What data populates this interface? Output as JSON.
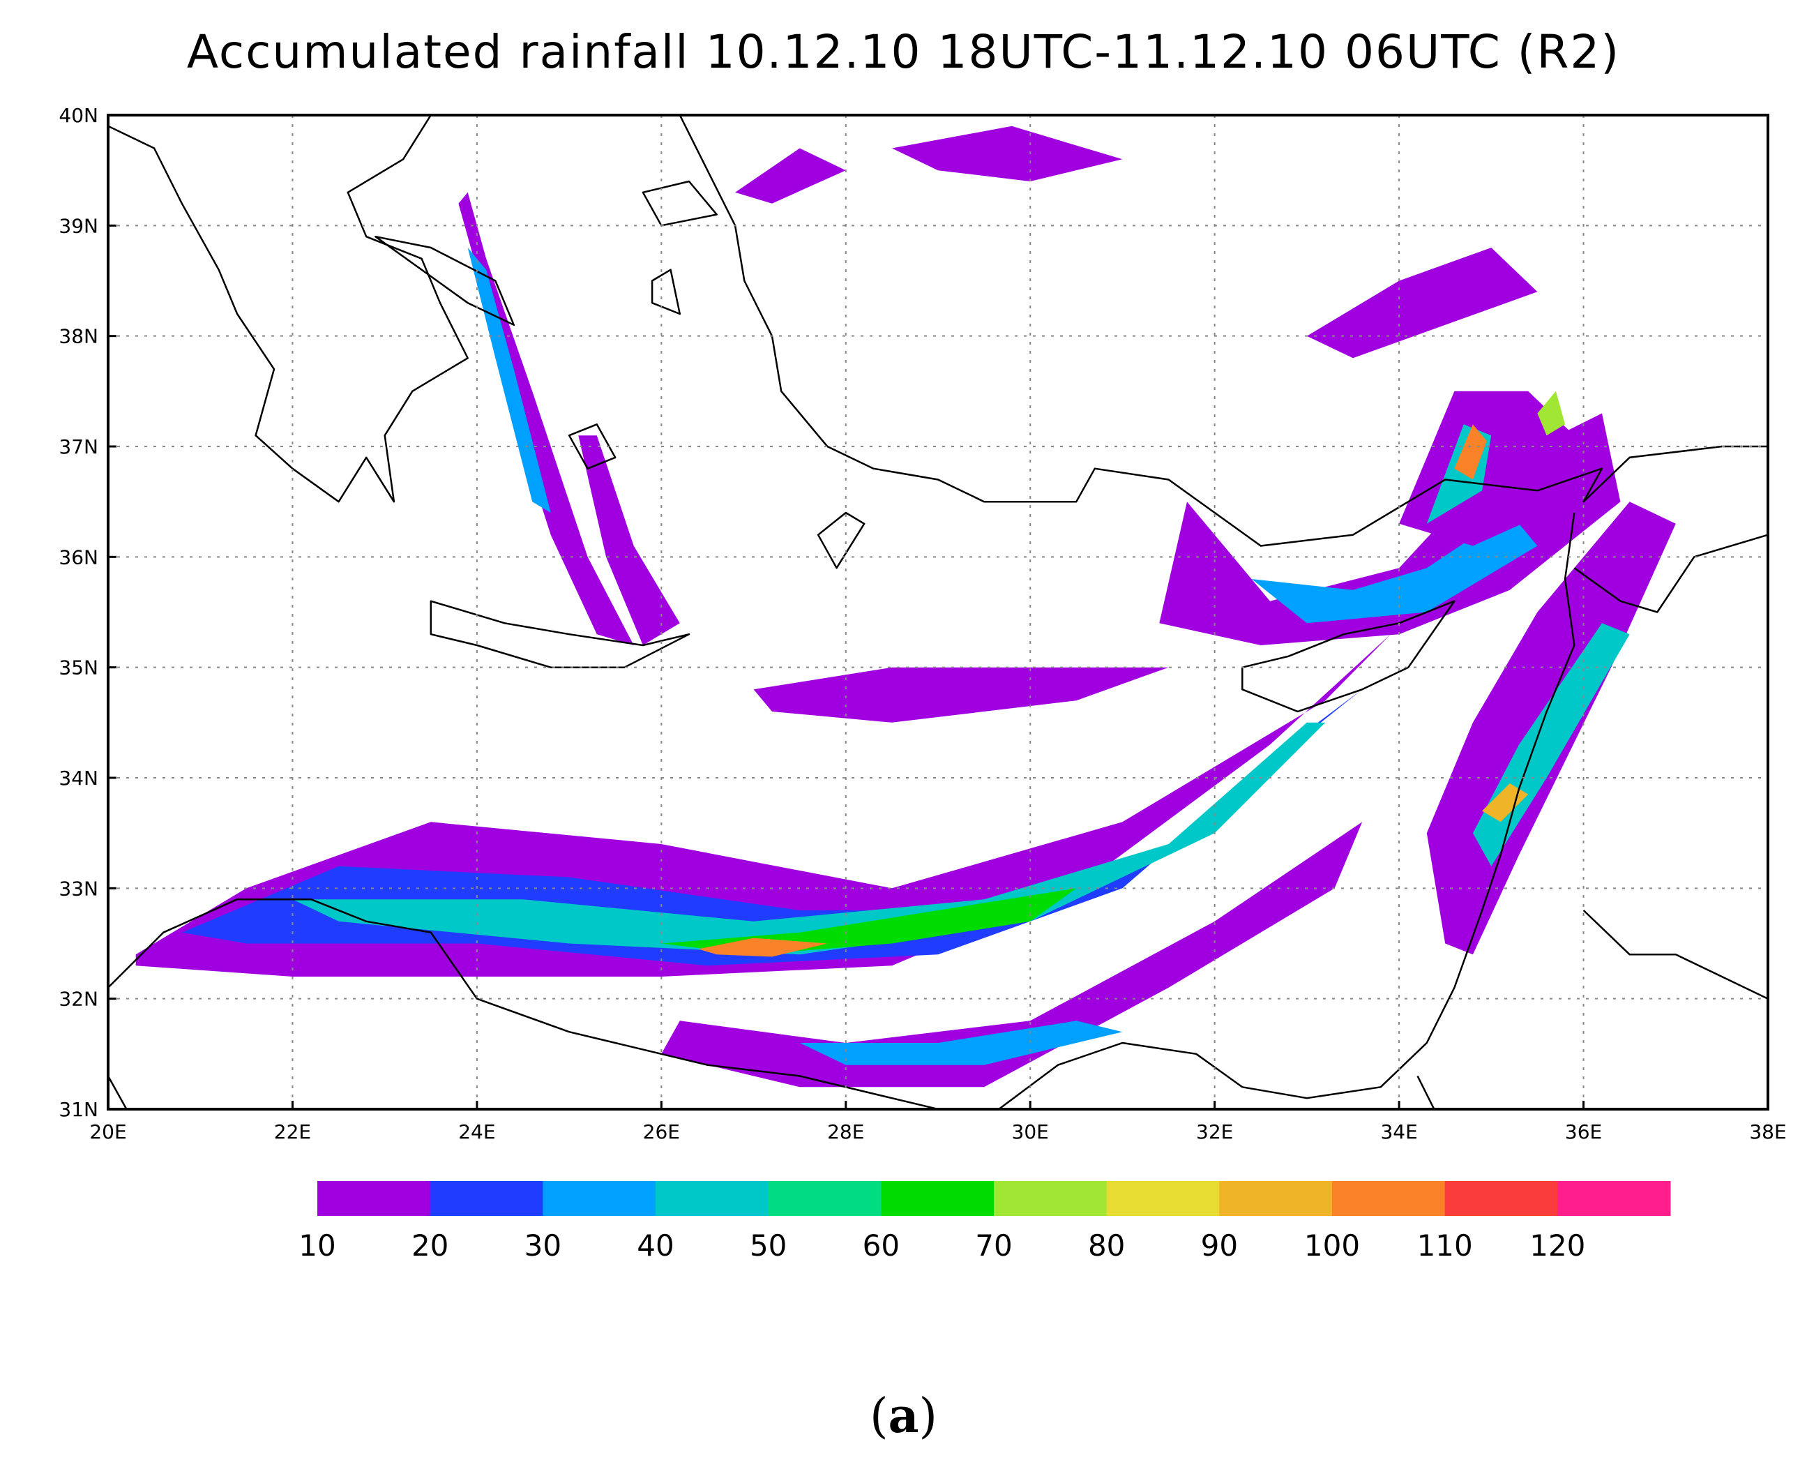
{
  "title": "Accumulated rainfall 10.12.10 18UTC-11.12.10 06UTC (R2)",
  "caption": {
    "open": "(",
    "letter": "a",
    "close": ")"
  },
  "map": {
    "lon_range": [
      20,
      38
    ],
    "lat_range": [
      31,
      40
    ],
    "lon_ticks": [
      "20E",
      "22E",
      "24E",
      "26E",
      "28E",
      "30E",
      "32E",
      "34E",
      "36E",
      "38E"
    ],
    "lat_ticks": [
      "31N",
      "32N",
      "33N",
      "34N",
      "35N",
      "36N",
      "37N",
      "38N",
      "39N",
      "40N"
    ],
    "grid": "dotted"
  },
  "colorbar": {
    "colors": [
      "#a000e0",
      "#1f3cff",
      "#00a0ff",
      "#00c8c8",
      "#00dc82",
      "#00dc00",
      "#a0e632",
      "#e6dc32",
      "#f0b428",
      "#fa8228",
      "#fa3c3c",
      "#ff1e8c"
    ],
    "labels": [
      "10",
      "20",
      "30",
      "40",
      "50",
      "60",
      "70",
      "80",
      "90",
      "100",
      "110",
      "120"
    ]
  },
  "rain_bands": [
    {
      "name": "libya-sea-band",
      "level": 10,
      "points": [
        [
          20.3,
          32.4
        ],
        [
          21.5,
          33.0
        ],
        [
          23.5,
          33.6
        ],
        [
          26.0,
          33.4
        ],
        [
          28.5,
          33.0
        ],
        [
          31.0,
          33.6
        ],
        [
          33.2,
          34.7
        ],
        [
          34.5,
          35.8
        ],
        [
          34.3,
          35.6
        ],
        [
          32.6,
          34.3
        ],
        [
          30.5,
          33.0
        ],
        [
          28.5,
          32.3
        ],
        [
          26.0,
          32.2
        ],
        [
          24.0,
          32.2
        ],
        [
          22.0,
          32.2
        ],
        [
          20.3,
          32.3
        ]
      ]
    },
    {
      "name": "libya-sea-band",
      "level": 20,
      "points": [
        [
          20.8,
          32.6
        ],
        [
          22.5,
          33.2
        ],
        [
          25.0,
          33.1
        ],
        [
          27.5,
          32.8
        ],
        [
          29.5,
          32.8
        ],
        [
          31.5,
          33.3
        ],
        [
          33.0,
          34.4
        ],
        [
          33.6,
          34.8
        ],
        [
          32.8,
          34.3
        ],
        [
          31.0,
          33.0
        ],
        [
          29.0,
          32.4
        ],
        [
          26.5,
          32.3
        ],
        [
          24.0,
          32.5
        ],
        [
          21.5,
          32.5
        ]
      ]
    },
    {
      "name": "libya-sea-band",
      "level": 40,
      "points": [
        [
          22.0,
          32.9
        ],
        [
          24.5,
          32.9
        ],
        [
          27.0,
          32.7
        ],
        [
          29.5,
          32.9
        ],
        [
          31.5,
          33.4
        ],
        [
          33.0,
          34.5
        ],
        [
          33.2,
          34.5
        ],
        [
          32.0,
          33.5
        ],
        [
          30.0,
          32.7
        ],
        [
          27.5,
          32.4
        ],
        [
          25.0,
          32.5
        ],
        [
          22.5,
          32.7
        ]
      ]
    },
    {
      "name": "libya-sea-band",
      "level": 60,
      "points": [
        [
          26.0,
          32.5
        ],
        [
          27.5,
          32.6
        ],
        [
          29.0,
          32.8
        ],
        [
          30.5,
          33.0
        ],
        [
          30.0,
          32.7
        ],
        [
          28.5,
          32.5
        ],
        [
          27.0,
          32.4
        ]
      ]
    },
    {
      "name": "libya-sea-max",
      "level": 100,
      "points": [
        [
          26.4,
          32.45
        ],
        [
          27.0,
          32.55
        ],
        [
          27.8,
          32.5
        ],
        [
          27.2,
          32.38
        ],
        [
          26.6,
          32.4
        ]
      ]
    },
    {
      "name": "cyprus-band",
      "level": 10,
      "points": [
        [
          31.7,
          36.5
        ],
        [
          32.6,
          35.6
        ],
        [
          34.0,
          35.9
        ],
        [
          35.0,
          36.8
        ],
        [
          36.2,
          37.3
        ],
        [
          36.4,
          36.5
        ],
        [
          35.2,
          35.7
        ],
        [
          34.0,
          35.3
        ],
        [
          32.5,
          35.2
        ],
        [
          31.4,
          35.4
        ]
      ]
    },
    {
      "name": "cyprus-band",
      "level": 30,
      "points": [
        [
          32.4,
          35.8
        ],
        [
          33.5,
          35.7
        ],
        [
          34.3,
          35.9
        ],
        [
          35.2,
          36.4
        ],
        [
          35.5,
          36.1
        ],
        [
          34.3,
          35.5
        ],
        [
          33.0,
          35.4
        ]
      ]
    },
    {
      "name": "turkey-cell",
      "level": 10,
      "points": [
        [
          34.0,
          36.3
        ],
        [
          34.6,
          37.5
        ],
        [
          35.4,
          37.5
        ],
        [
          35.9,
          37.1
        ],
        [
          35.6,
          36.4
        ],
        [
          34.8,
          36.1
        ]
      ]
    },
    {
      "name": "turkey-cell",
      "level": 40,
      "points": [
        [
          34.3,
          36.3
        ],
        [
          34.7,
          37.2
        ],
        [
          35.0,
          37.1
        ],
        [
          34.9,
          36.6
        ]
      ]
    },
    {
      "name": "turkey-cell-max",
      "level": 100,
      "points": [
        [
          34.6,
          36.8
        ],
        [
          34.8,
          37.2
        ],
        [
          34.95,
          37.05
        ],
        [
          34.8,
          36.7
        ]
      ]
    },
    {
      "name": "turkey-cell-east",
      "level": 70,
      "points": [
        [
          35.5,
          37.3
        ],
        [
          35.7,
          37.5
        ],
        [
          35.8,
          37.2
        ],
        [
          35.6,
          37.1
        ]
      ]
    },
    {
      "name": "levant-band",
      "level": 10,
      "points": [
        [
          34.3,
          33.5
        ],
        [
          34.8,
          34.5
        ],
        [
          35.5,
          35.5
        ],
        [
          36.5,
          36.5
        ],
        [
          37.0,
          36.3
        ],
        [
          36.3,
          35.0
        ],
        [
          35.3,
          33.3
        ],
        [
          34.8,
          32.4
        ],
        [
          34.5,
          32.5
        ]
      ]
    },
    {
      "name": "levant-band",
      "level": 40,
      "points": [
        [
          34.8,
          33.5
        ],
        [
          35.3,
          34.3
        ],
        [
          36.2,
          35.4
        ],
        [
          36.5,
          35.3
        ],
        [
          35.6,
          34.0
        ],
        [
          35.0,
          33.2
        ]
      ]
    },
    {
      "name": "levant-band-max",
      "level": 90,
      "points": [
        [
          34.9,
          33.7
        ],
        [
          35.2,
          33.95
        ],
        [
          35.4,
          33.85
        ],
        [
          35.1,
          33.6
        ]
      ]
    },
    {
      "name": "aegean-band",
      "level": 10,
      "points": [
        [
          23.8,
          39.2
        ],
        [
          24.0,
          38.6
        ],
        [
          24.3,
          37.5
        ],
        [
          24.8,
          36.2
        ],
        [
          25.3,
          35.3
        ],
        [
          25.7,
          35.2
        ],
        [
          25.2,
          36.0
        ],
        [
          24.6,
          37.5
        ],
        [
          24.1,
          38.7
        ],
        [
          23.9,
          39.3
        ]
      ]
    },
    {
      "name": "aegean-band",
      "level": 30,
      "points": [
        [
          23.9,
          38.8
        ],
        [
          24.2,
          37.8
        ],
        [
          24.6,
          36.5
        ],
        [
          24.8,
          36.4
        ],
        [
          24.4,
          37.7
        ],
        [
          24.1,
          38.6
        ]
      ]
    },
    {
      "name": "crete-band",
      "level": 10,
      "points": [
        [
          25.1,
          37.1
        ],
        [
          25.4,
          36.0
        ],
        [
          25.8,
          35.2
        ],
        [
          26.2,
          35.4
        ],
        [
          25.7,
          36.1
        ],
        [
          25.3,
          37.1
        ]
      ]
    },
    {
      "name": "south-band",
      "level": 10,
      "points": [
        [
          26.2,
          31.8
        ],
        [
          28.0,
          31.6
        ],
        [
          30.0,
          31.8
        ],
        [
          32.0,
          32.7
        ],
        [
          33.6,
          33.6
        ],
        [
          33.3,
          33.0
        ],
        [
          31.5,
          32.1
        ],
        [
          29.5,
          31.2
        ],
        [
          27.5,
          31.2
        ],
        [
          26.0,
          31.5
        ]
      ]
    },
    {
      "name": "south-band",
      "level": 30,
      "points": [
        [
          27.5,
          31.6
        ],
        [
          29.0,
          31.6
        ],
        [
          30.5,
          31.8
        ],
        [
          31.0,
          31.7
        ],
        [
          29.5,
          31.4
        ],
        [
          28.0,
          31.4
        ]
      ]
    },
    {
      "name": "central-cell",
      "level": 10,
      "points": [
        [
          27.0,
          34.8
        ],
        [
          28.5,
          35.0
        ],
        [
          30.0,
          35.0
        ],
        [
          31.5,
          35.0
        ],
        [
          30.5,
          34.7
        ],
        [
          28.5,
          34.5
        ],
        [
          27.2,
          34.6
        ]
      ]
    },
    {
      "name": "north-aegean-band",
      "level": 10,
      "points": [
        [
          33.0,
          38.0
        ],
        [
          34.0,
          38.5
        ],
        [
          35.0,
          38.8
        ],
        [
          35.5,
          38.4
        ],
        [
          34.5,
          38.1
        ],
        [
          33.5,
          37.8
        ]
      ]
    },
    {
      "name": "north-aegean-band",
      "level": 10,
      "points": [
        [
          28.5,
          39.7
        ],
        [
          29.8,
          39.9
        ],
        [
          31.0,
          39.6
        ],
        [
          30.0,
          39.4
        ],
        [
          29.0,
          39.5
        ]
      ]
    },
    {
      "name": "north-aegean-band",
      "level": 10,
      "points": [
        [
          26.8,
          39.3
        ],
        [
          27.5,
          39.7
        ],
        [
          28.0,
          39.5
        ],
        [
          27.2,
          39.2
        ]
      ]
    }
  ],
  "coastlines": [
    {
      "name": "greece-coast",
      "points": [
        [
          20.0,
          39.9
        ],
        [
          20.5,
          39.7
        ],
        [
          20.8,
          39.2
        ],
        [
          21.2,
          38.6
        ],
        [
          21.4,
          38.2
        ],
        [
          21.8,
          37.7
        ],
        [
          21.6,
          37.1
        ],
        [
          22.0,
          36.8
        ],
        [
          22.5,
          36.5
        ],
        [
          22.8,
          36.9
        ],
        [
          23.1,
          36.5
        ],
        [
          23.0,
          37.1
        ],
        [
          23.3,
          37.5
        ],
        [
          23.9,
          37.8
        ],
        [
          23.6,
          38.3
        ],
        [
          23.4,
          38.7
        ],
        [
          22.8,
          38.9
        ],
        [
          22.6,
          39.3
        ],
        [
          23.2,
          39.6
        ],
        [
          23.5,
          40.0
        ]
      ]
    },
    {
      "name": "crete-coast",
      "points": [
        [
          23.5,
          35.6
        ],
        [
          24.3,
          35.4
        ],
        [
          25.0,
          35.3
        ],
        [
          25.8,
          35.2
        ],
        [
          26.3,
          35.3
        ],
        [
          25.6,
          35.0
        ],
        [
          24.8,
          35.0
        ],
        [
          24.0,
          35.2
        ],
        [
          23.5,
          35.3
        ],
        [
          23.5,
          35.6
        ]
      ]
    },
    {
      "name": "turkey-coast",
      "points": [
        [
          26.2,
          40.0
        ],
        [
          26.5,
          39.5
        ],
        [
          26.8,
          39.0
        ],
        [
          26.9,
          38.5
        ],
        [
          27.2,
          38.0
        ],
        [
          27.3,
          37.5
        ],
        [
          27.8,
          37.0
        ],
        [
          28.3,
          36.8
        ],
        [
          29.0,
          36.7
        ],
        [
          29.5,
          36.5
        ],
        [
          30.5,
          36.5
        ],
        [
          30.7,
          36.8
        ],
        [
          31.5,
          36.7
        ],
        [
          32.5,
          36.1
        ],
        [
          33.5,
          36.2
        ],
        [
          34.5,
          36.7
        ],
        [
          35.5,
          36.6
        ],
        [
          36.2,
          36.8
        ],
        [
          36.0,
          36.5
        ],
        [
          36.5,
          36.9
        ],
        [
          37.5,
          37.0
        ],
        [
          38.0,
          37.0
        ]
      ]
    },
    {
      "name": "cyprus-coast",
      "points": [
        [
          32.3,
          34.8
        ],
        [
          32.9,
          34.6
        ],
        [
          33.6,
          34.8
        ],
        [
          34.1,
          35.0
        ],
        [
          34.6,
          35.6
        ],
        [
          34.0,
          35.4
        ],
        [
          33.4,
          35.3
        ],
        [
          32.8,
          35.1
        ],
        [
          32.3,
          35.0
        ],
        [
          32.3,
          34.8
        ]
      ]
    },
    {
      "name": "levant-coast",
      "points": [
        [
          35.9,
          36.4
        ],
        [
          35.8,
          35.8
        ],
        [
          35.9,
          35.2
        ],
        [
          35.6,
          34.6
        ],
        [
          35.3,
          33.9
        ],
        [
          35.1,
          33.3
        ],
        [
          34.9,
          32.8
        ],
        [
          34.6,
          32.1
        ],
        [
          34.3,
          31.6
        ],
        [
          33.8,
          31.2
        ],
        [
          33.0,
          31.1
        ],
        [
          32.3,
          31.2
        ]
      ]
    },
    {
      "name": "africa-coast",
      "points": [
        [
          20.0,
          32.1
        ],
        [
          20.6,
          32.6
        ],
        [
          21.4,
          32.9
        ],
        [
          22.2,
          32.9
        ],
        [
          22.8,
          32.7
        ],
        [
          23.5,
          32.6
        ],
        [
          24.0,
          32.0
        ],
        [
          25.0,
          31.7
        ],
        [
          25.5,
          31.6
        ],
        [
          26.5,
          31.4
        ],
        [
          27.5,
          31.3
        ],
        [
          28.5,
          31.1
        ],
        [
          29.5,
          30.9
        ],
        [
          30.3,
          31.4
        ],
        [
          31.0,
          31.6
        ],
        [
          31.8,
          31.5
        ],
        [
          32.3,
          31.2
        ]
      ]
    },
    {
      "name": "libya-inland-border",
      "points": [
        [
          20.0,
          31.3
        ],
        [
          20.2,
          31.0
        ]
      ]
    },
    {
      "name": "levant-border",
      "points": [
        [
          36.0,
          32.8
        ],
        [
          36.5,
          32.4
        ],
        [
          37.0,
          32.4
        ],
        [
          38.0,
          32.0
        ]
      ]
    },
    {
      "name": "syria-border",
      "points": [
        [
          35.9,
          35.9
        ],
        [
          36.4,
          35.6
        ],
        [
          36.8,
          35.5
        ],
        [
          37.2,
          36.0
        ],
        [
          38.0,
          36.2
        ]
      ]
    },
    {
      "name": "sinai-border",
      "points": [
        [
          34.2,
          31.3
        ],
        [
          34.5,
          30.8
        ],
        [
          34.9,
          29.5
        ]
      ]
    },
    {
      "name": "rhodes-coast",
      "points": [
        [
          27.7,
          36.2
        ],
        [
          28.0,
          36.4
        ],
        [
          28.2,
          36.3
        ],
        [
          27.9,
          35.9
        ],
        [
          27.7,
          36.2
        ]
      ]
    },
    {
      "name": "lesvos-coast",
      "points": [
        [
          25.8,
          39.3
        ],
        [
          26.3,
          39.4
        ],
        [
          26.6,
          39.1
        ],
        [
          26.0,
          39.0
        ],
        [
          25.8,
          39.3
        ]
      ]
    },
    {
      "name": "chios-coast",
      "points": [
        [
          25.9,
          38.5
        ],
        [
          26.1,
          38.6
        ],
        [
          26.2,
          38.2
        ],
        [
          25.9,
          38.3
        ],
        [
          25.9,
          38.5
        ]
      ]
    },
    {
      "name": "euboea-coast",
      "points": [
        [
          22.9,
          38.9
        ],
        [
          23.5,
          38.8
        ],
        [
          24.2,
          38.5
        ],
        [
          24.4,
          38.1
        ],
        [
          23.9,
          38.3
        ],
        [
          23.4,
          38.6
        ],
        [
          22.9,
          38.9
        ]
      ]
    },
    {
      "name": "cyclades-coast",
      "points": [
        [
          25.0,
          37.1
        ],
        [
          25.3,
          37.2
        ],
        [
          25.5,
          36.9
        ],
        [
          25.2,
          36.8
        ],
        [
          25.0,
          37.1
        ]
      ]
    }
  ]
}
